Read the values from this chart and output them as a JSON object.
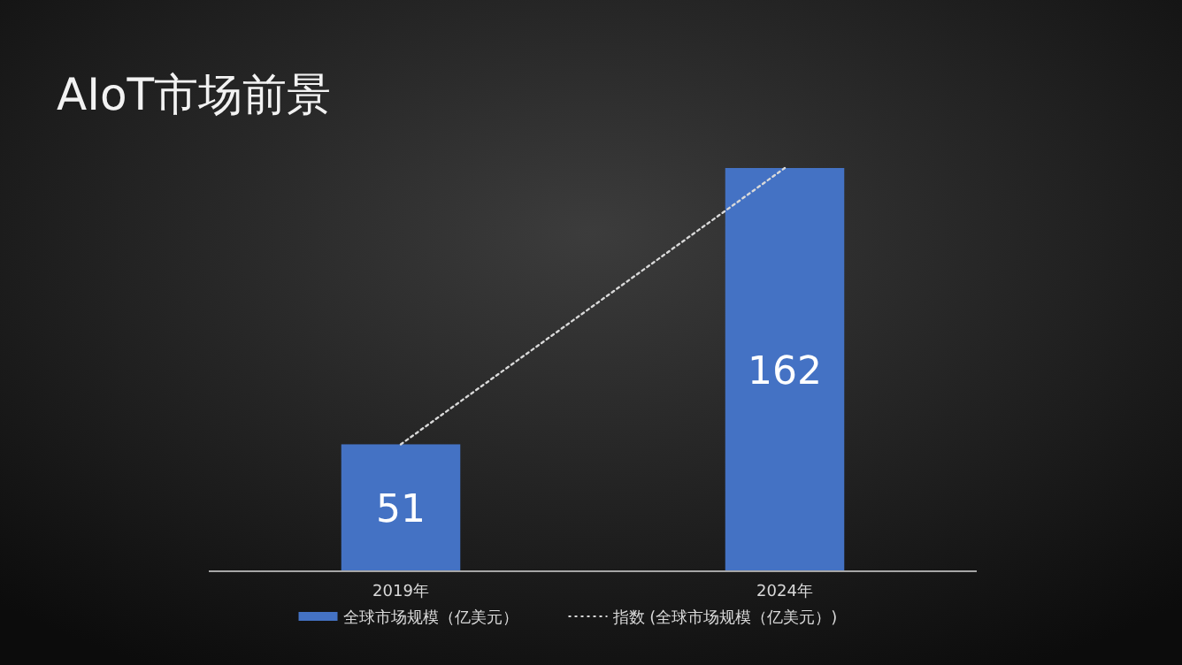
{
  "chart_data": {
    "type": "bar",
    "title": "AIoT市场前景",
    "categories": [
      "2019年",
      "2024年"
    ],
    "series": [
      {
        "name": "全球市场规模（亿美元）",
        "color": "#4472c4",
        "values": [
          51,
          162
        ],
        "value_labels": [
          "51",
          "162"
        ]
      },
      {
        "name": "指数 (全球市场规模（亿美元）)",
        "type": "line",
        "color": "#d9d9d9",
        "line_style": "dotted",
        "x": [
          "2019年",
          "2024年"
        ],
        "values": [
          51,
          162
        ]
      }
    ],
    "legend": "bottom",
    "grid": false
  }
}
